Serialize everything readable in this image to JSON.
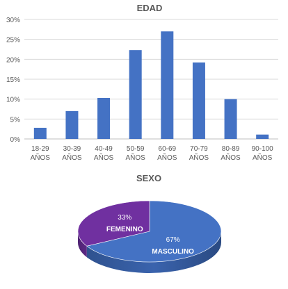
{
  "chart_data": [
    {
      "type": "bar",
      "title": "EDAD",
      "categories": [
        "18-29 AÑOS",
        "30-39 AÑOS",
        "40-49 AÑOS",
        "50-59 AÑOS",
        "60-69 AÑOS",
        "70-79 AÑOS",
        "80-89 AÑOS",
        "90-100 AÑOS"
      ],
      "category_lines": [
        [
          "18-29",
          "AÑOS"
        ],
        [
          "30-39",
          "AÑOS"
        ],
        [
          "40-49",
          "AÑOS"
        ],
        [
          "50-59",
          "AÑOS"
        ],
        [
          "60-69",
          "AÑOS"
        ],
        [
          "70-79",
          "AÑOS"
        ],
        [
          "80-89",
          "AÑOS"
        ],
        [
          "90-100",
          "AÑOS"
        ]
      ],
      "values": [
        2.8,
        7.0,
        10.3,
        22.3,
        27.0,
        19.2,
        10.0,
        1.1
      ],
      "ylim": [
        0,
        30
      ],
      "yticks": [
        "0%",
        "5%",
        "10%",
        "15%",
        "20%",
        "25%",
        "30%"
      ],
      "grid": true,
      "color": "#4472c4"
    },
    {
      "type": "pie",
      "title": "SEXO",
      "slices": [
        {
          "label": "MASCULINO",
          "value": 67,
          "value_label": "67%",
          "color": "#4472c4"
        },
        {
          "label": "FEMENINO",
          "value": 33,
          "value_label": "33%",
          "color": "#7030a0"
        }
      ]
    }
  ]
}
